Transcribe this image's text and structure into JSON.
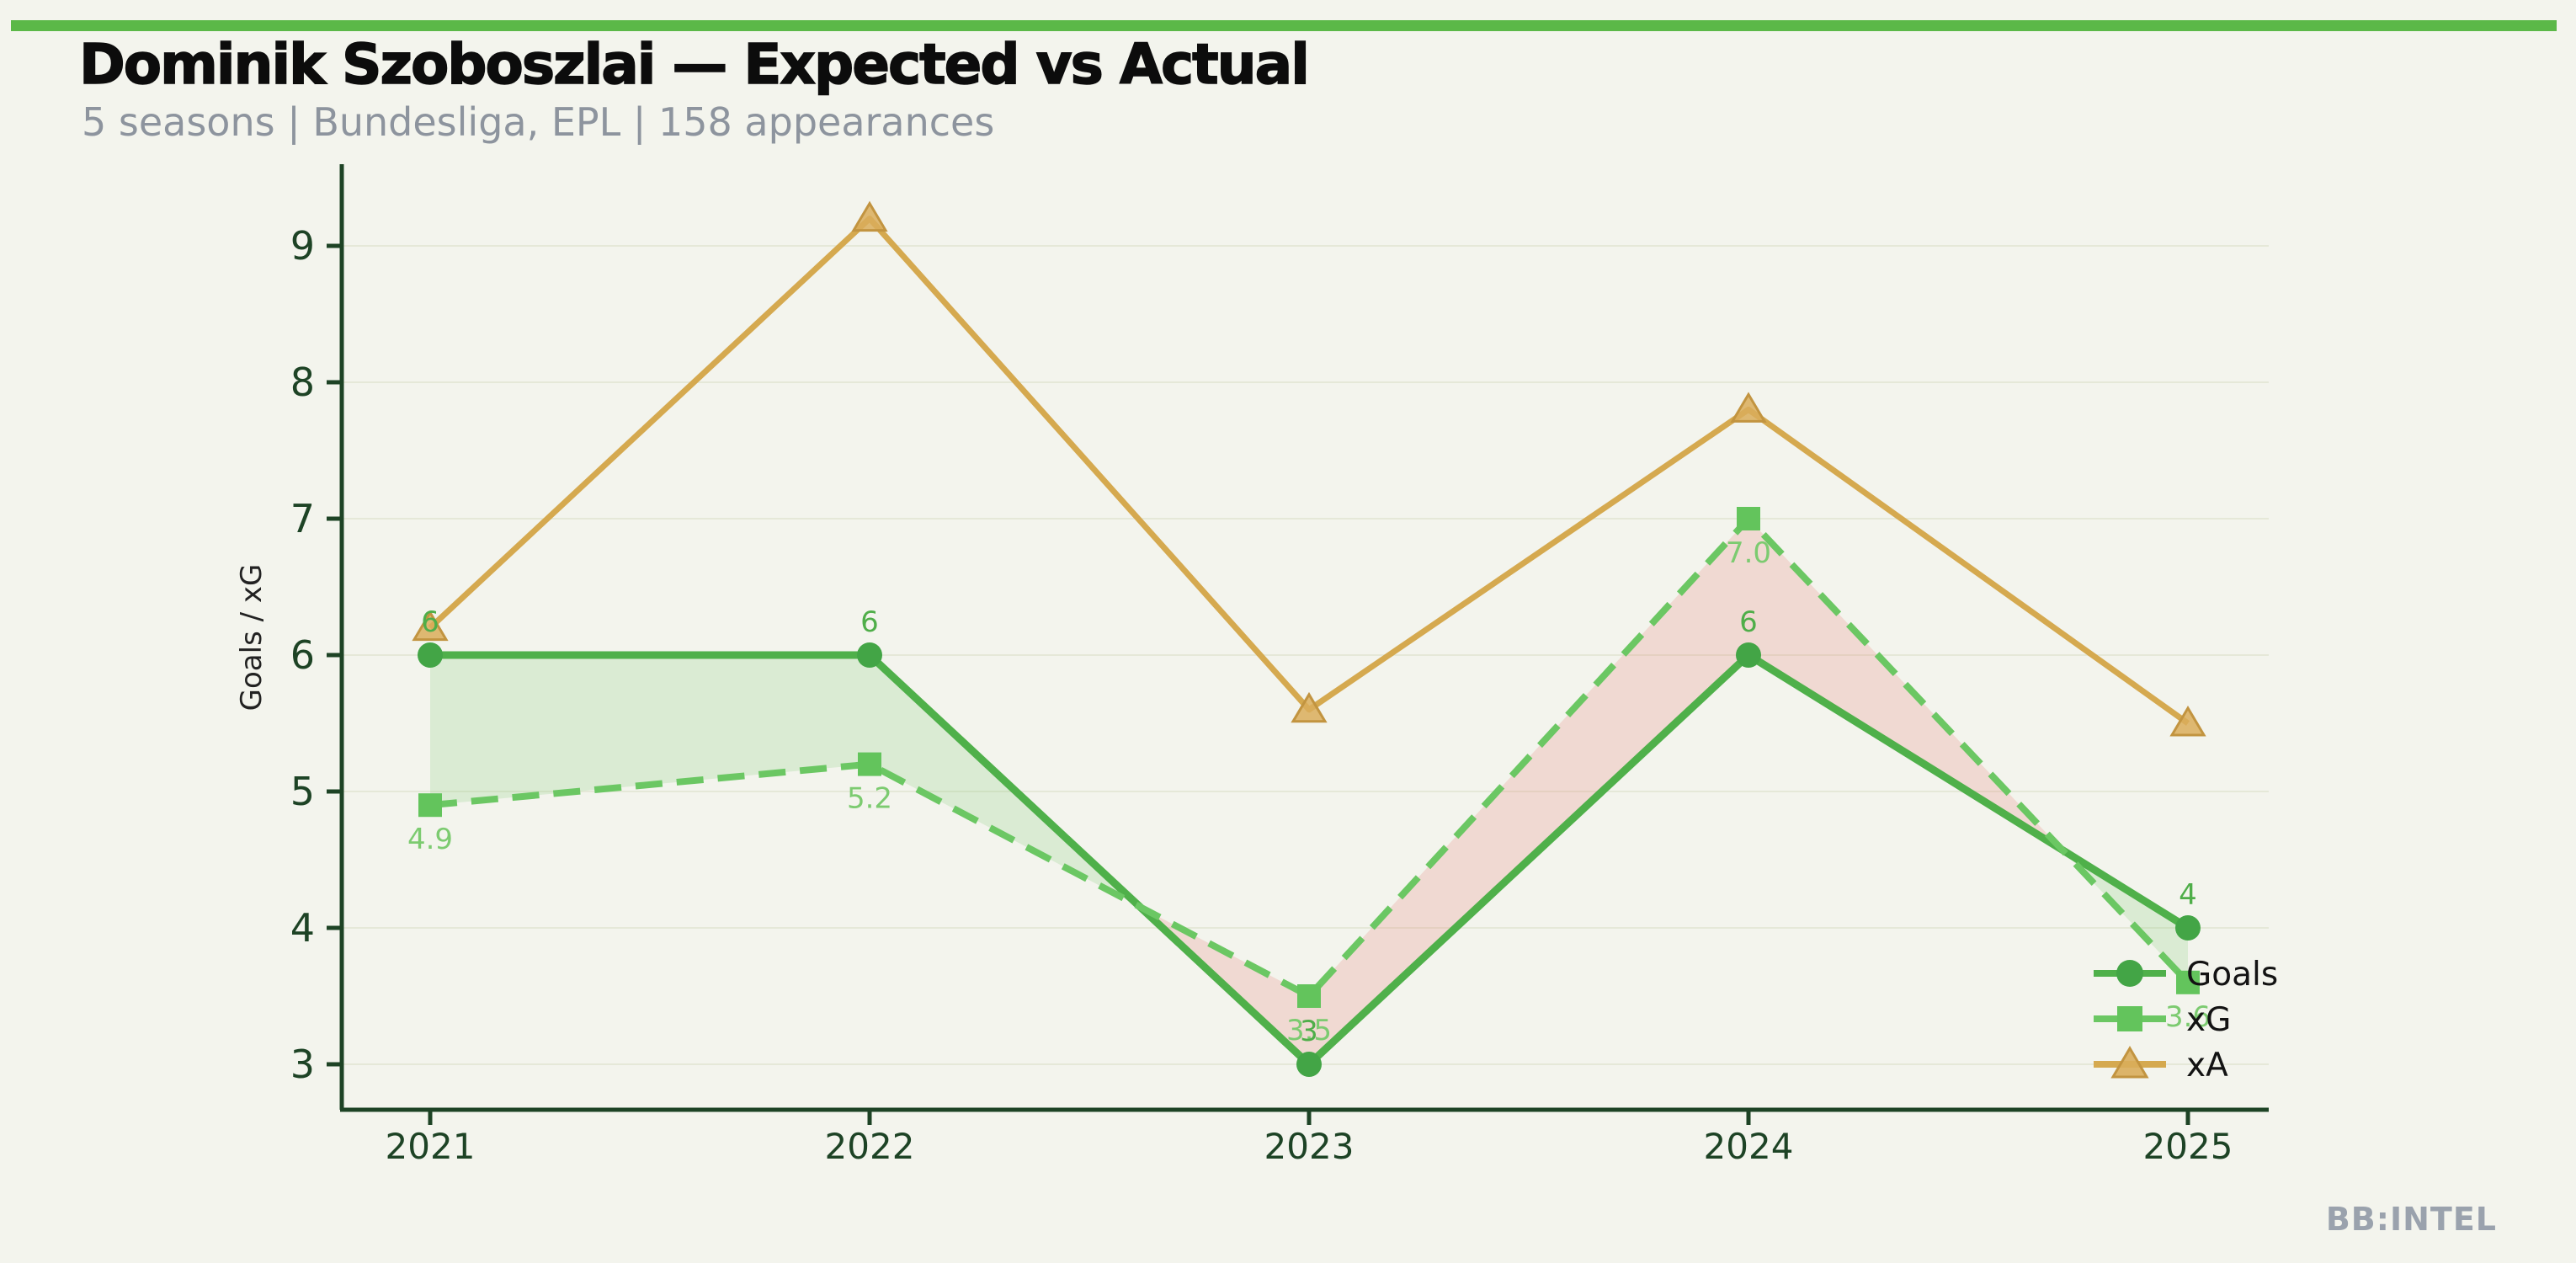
{
  "page": {
    "background_color": "#f3f4ed",
    "accent_bar_color": "#5bb848"
  },
  "header": {
    "title": "Dominik Szoboszlai — Expected vs Actual",
    "subtitle": "5 seasons | Bundesliga, EPL | 158 appearances"
  },
  "branding": {
    "watermark": "BB:INTEL"
  },
  "chart_data": {
    "type": "line",
    "title": "Dominik Szoboszlai — Expected vs Actual",
    "categories": [
      "2021",
      "2022",
      "2023",
      "2024",
      "2025"
    ],
    "series": [
      {
        "name": "Goals",
        "values": [
          6,
          6,
          3,
          6,
          4
        ],
        "point_labels": [
          "6",
          "6",
          "3",
          "6",
          "4"
        ],
        "color": "#4fb04a",
        "marker_color": "#43a546",
        "marker": "circle",
        "style": "solid",
        "label_color": "#4fae49"
      },
      {
        "name": "xG",
        "values": [
          4.9,
          5.2,
          3.5,
          7.0,
          3.6
        ],
        "point_labels": [
          "4.9",
          "5.2",
          "3.5",
          "7.0",
          "3.6"
        ],
        "color": "#6bc763",
        "marker_color": "#63c45c",
        "marker": "square",
        "style": "dashed",
        "label_color": "#7ccb70"
      },
      {
        "name": "xA",
        "values": [
          6.2,
          9.2,
          5.6,
          7.8,
          5.5
        ],
        "point_labels": [],
        "color": "#d5a94f",
        "marker_color": "#d9ad5a",
        "marker_edge_color": "#c29440",
        "marker": "triangle",
        "style": "solid"
      }
    ],
    "xlabel": "",
    "ylabel": "Goals / xG",
    "y_ticks": [
      3,
      4,
      5,
      6,
      7,
      8,
      9
    ],
    "ylim": [
      2.67,
      9.9
    ],
    "grid": "faint-horizontal-gridlines",
    "legend_position": "lower-right",
    "legend_labels": [
      "Goals",
      "xG",
      "xA"
    ],
    "fill_between": {
      "upper": "Goals",
      "lower": "xG",
      "overperform_color": "rgba(120,200,110,0.20)",
      "underperform_color": "rgba(231,124,112,0.22)"
    },
    "axis_color": "#1d4325",
    "gridline_color": "rgba(203,209,178,0.35)"
  }
}
